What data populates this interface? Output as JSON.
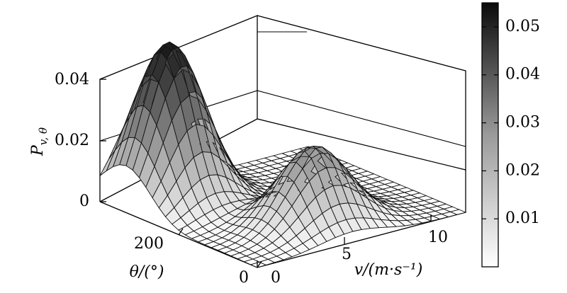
{
  "chart_data": {
    "type": "surface",
    "title": "",
    "xlabel": "v/(m·s⁻¹)",
    "ylabel": "θ/(°)",
    "zlabel": "P",
    "zlabel_sub": "v, θ",
    "x_ticks": [
      "0",
      "5",
      "10"
    ],
    "y_ticks": [
      "0",
      "200"
    ],
    "z_ticks": [
      "0",
      "0.02",
      "0.04"
    ],
    "colorbar": {
      "range": [
        0,
        0.055
      ],
      "colormap": "gray-reversed",
      "ticks": [
        "0.01",
        "0.02",
        "0.03",
        "0.04",
        "0.05"
      ]
    },
    "xlim": [
      0,
      12
    ],
    "ylim": [
      0,
      360
    ],
    "zlim": [
      0,
      0.05
    ],
    "grid": true,
    "peaks": [
      {
        "v": 2.5,
        "theta": 300,
        "P": 0.052
      },
      {
        "v": 5.5,
        "theta": 90,
        "P": 0.026
      }
    ]
  }
}
